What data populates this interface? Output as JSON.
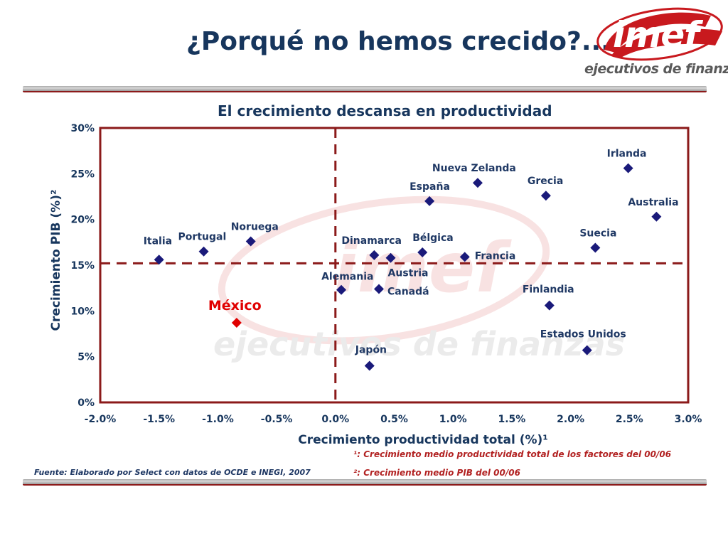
{
  "slide": {
    "title": "¿Porqué no hemos crecido?...",
    "logo_word": "imef",
    "logo_tagline": "ejecutivos de finanzas",
    "watermark_word": "imef",
    "watermark_tagline": "ejecutivos de finanzas",
    "source": "Fuente: Elaborado por Select con datos de  OCDE e INEGI, 2007",
    "footnote_1": "¹: Crecimiento medio productividad total de los factores del 00/06",
    "footnote_2": "²: Crecimiento medio PIB del 00/06"
  },
  "colors": {
    "title": "#17365d",
    "frame": "#8b1a1a",
    "marker": "#1a1a7a",
    "highlight": "#e00000",
    "label": "#1f3864",
    "footnote": "#b22222",
    "logo_red": "#c8191e"
  },
  "chart_data": {
    "type": "scatter",
    "title": "El crecimiento descansa en  productividad",
    "xlabel": "Crecimiento productividad total (%)¹",
    "ylabel": "Crecimiento PIB (%)²",
    "xlim": [
      -2.0,
      3.0
    ],
    "ylim": [
      0,
      30
    ],
    "x_ticks": [
      "-2.0%",
      "-1.5%",
      "-1.0%",
      "-0.5%",
      "0.0%",
      "0.5%",
      "1.0%",
      "1.5%",
      "2.0%",
      "2.5%",
      "3.0%"
    ],
    "y_ticks": [
      "0%",
      "5%",
      "10%",
      "15%",
      "20%",
      "25%",
      "30%"
    ],
    "grid": false,
    "reference_lines": {
      "x": 0.0,
      "y": 15.2
    },
    "points": [
      {
        "label": "Italia",
        "x": -1.5,
        "y": 15.6
      },
      {
        "label": "Portugal",
        "x": -1.12,
        "y": 16.5
      },
      {
        "label": "Noruega",
        "x": -0.72,
        "y": 17.6
      },
      {
        "label": "México",
        "x": -0.84,
        "y": 8.7,
        "highlight": true
      },
      {
        "label": "Alemania",
        "x": 0.05,
        "y": 12.3
      },
      {
        "label": "Japón",
        "x": 0.29,
        "y": 4.0
      },
      {
        "label": "Dinamarca",
        "x": 0.33,
        "y": 16.1
      },
      {
        "label": "Canadá",
        "x": 0.37,
        "y": 12.4
      },
      {
        "label": "Austria",
        "x": 0.47,
        "y": 15.8
      },
      {
        "label": "Bélgica",
        "x": 0.74,
        "y": 16.4
      },
      {
        "label": "España",
        "x": 0.8,
        "y": 22.0
      },
      {
        "label": "Francia",
        "x": 1.1,
        "y": 15.9
      },
      {
        "label": "Nueva Zelanda",
        "x": 1.21,
        "y": 24.0
      },
      {
        "label": "Grecia",
        "x": 1.79,
        "y": 22.6
      },
      {
        "label": "Finlandia",
        "x": 1.82,
        "y": 10.6
      },
      {
        "label": "Estados Unidos",
        "x": 2.14,
        "y": 5.7
      },
      {
        "label": "Suecia",
        "x": 2.21,
        "y": 16.9
      },
      {
        "label": "Irlanda",
        "x": 2.49,
        "y": 25.6
      },
      {
        "label": "Australia",
        "x": 2.73,
        "y": 20.3
      }
    ]
  }
}
